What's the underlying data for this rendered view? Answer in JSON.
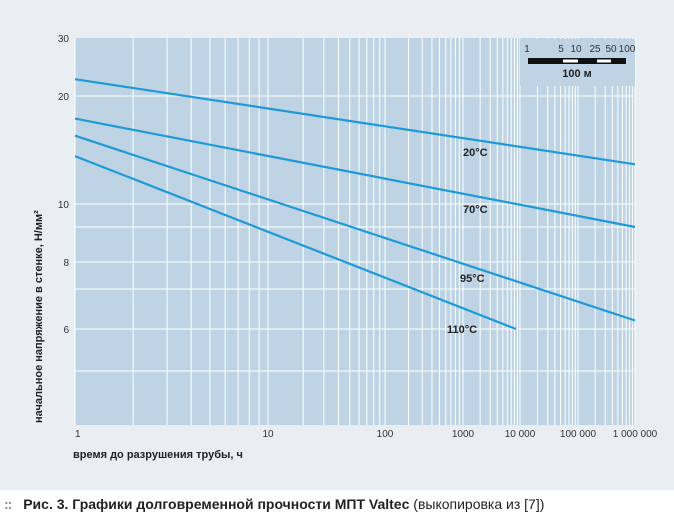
{
  "chart_data": {
    "type": "line",
    "xlabel": "время до разрушения трубы, ч",
    "ylabel": "начальное напряжение в стенке, Н/мм²",
    "x_scale": "log",
    "y_scale": "log",
    "xlim": [
      1,
      1000000
    ],
    "ylim": [
      4,
      30
    ],
    "grid": true,
    "x_ticks": [
      {
        "value": 1,
        "label": "1"
      },
      {
        "value": 10,
        "label": "10"
      },
      {
        "value": 100,
        "label": "100"
      },
      {
        "value": 1000,
        "label": "1000"
      },
      {
        "value": 10000,
        "label": "10 000"
      },
      {
        "value": 100000,
        "label": "100 000"
      },
      {
        "value": 1000000,
        "label": "1 000 000"
      }
    ],
    "y_ticks": [
      {
        "value": 30,
        "label": "30"
      },
      {
        "value": 20,
        "label": "20"
      },
      {
        "value": 10,
        "label": "10"
      },
      {
        "value": 8,
        "label": "8"
      },
      {
        "value": 6,
        "label": "6"
      }
    ],
    "series": [
      {
        "name": "20°C",
        "x": [
          1,
          1000000
        ],
        "y": [
          22.5,
          12.9
        ]
      },
      {
        "name": "70°C",
        "x": [
          1,
          1000000
        ],
        "y": [
          17.3,
          9.0
        ]
      },
      {
        "name": "95°C",
        "x": [
          1,
          1000000
        ],
        "y": [
          15.5,
          6.2
        ]
      },
      {
        "name": "110°C",
        "x": [
          1,
          8500
        ],
        "y": [
          13.6,
          6.0
        ]
      }
    ],
    "colors": {
      "line": "#1e9ad8",
      "plot_bg": "#bed4e4",
      "grid": "#ffffff"
    },
    "inset_scale": {
      "ticks": [
        "1",
        "5",
        "10",
        "25",
        "50",
        "100"
      ],
      "label": "100 м"
    }
  },
  "caption": {
    "prefix": "Рис. 3.",
    "title": "Графики долговременной прочности МПТ Valtec",
    "note": "(выкопировка из [7])"
  }
}
